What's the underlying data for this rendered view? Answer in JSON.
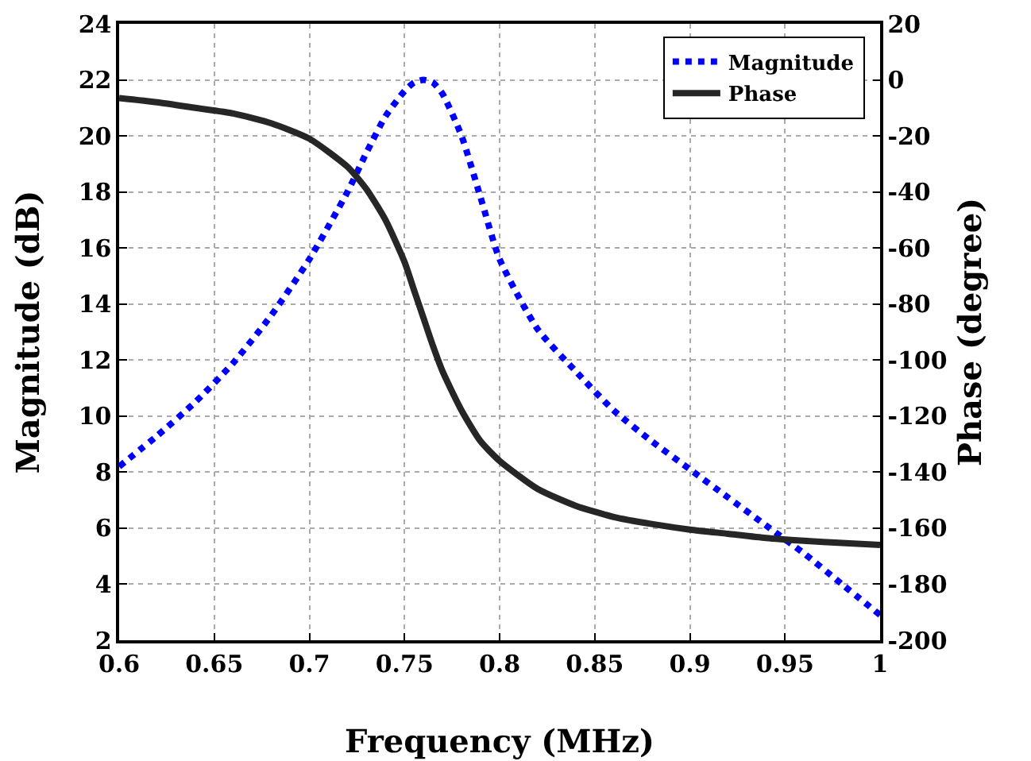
{
  "chart_data": {
    "type": "line",
    "xlabel": "Frequency (MHz)",
    "ylabel": "Magnitude (dB)",
    "y2label": "Phase (degree)",
    "x": [
      0.6,
      0.62,
      0.64,
      0.66,
      0.68,
      0.7,
      0.72,
      0.73,
      0.74,
      0.75,
      0.755,
      0.76,
      0.765,
      0.77,
      0.78,
      0.79,
      0.8,
      0.82,
      0.84,
      0.86,
      0.88,
      0.9,
      0.92,
      0.94,
      0.96,
      0.98,
      1.0
    ],
    "series": [
      {
        "name": "Magnitude",
        "color": "#0000ff",
        "line_style": "dotted",
        "values": [
          8.2,
          9.3,
          10.5,
          11.9,
          13.6,
          15.6,
          18.0,
          19.4,
          20.7,
          21.6,
          21.9,
          22.0,
          21.9,
          21.5,
          20.0,
          17.8,
          15.6,
          13.1,
          11.6,
          10.2,
          9.1,
          8.1,
          7.1,
          6.1,
          5.1,
          4.0,
          2.9
        ]
      },
      {
        "name": "Phase",
        "color": "#262626",
        "line_style": "solid",
        "axis": "y2",
        "values": [
          -6.5,
          -8,
          -10,
          -12,
          -15.5,
          -21,
          -31,
          -39,
          -50,
          -65,
          -75,
          -85,
          -95,
          -104,
          -118,
          -129,
          -136,
          -146,
          -152,
          -156,
          -158.5,
          -160.5,
          -162,
          -163.5,
          -164.5,
          -165.3,
          -166
        ]
      }
    ],
    "xlim": [
      0.6,
      1
    ],
    "xticks": [
      0.6,
      0.65,
      0.7,
      0.75,
      0.8,
      0.85,
      0.9,
      0.95,
      1
    ],
    "ylim": [
      2,
      24
    ],
    "yticks": [
      2,
      4,
      6,
      8,
      10,
      12,
      14,
      16,
      18,
      20,
      22,
      24
    ],
    "y2lim": [
      -200,
      20
    ],
    "y2ticks": [
      -200,
      -180,
      -160,
      -140,
      -120,
      -100,
      -80,
      -60,
      -40,
      -20,
      0,
      20
    ],
    "grid": true,
    "legend": "top right"
  }
}
